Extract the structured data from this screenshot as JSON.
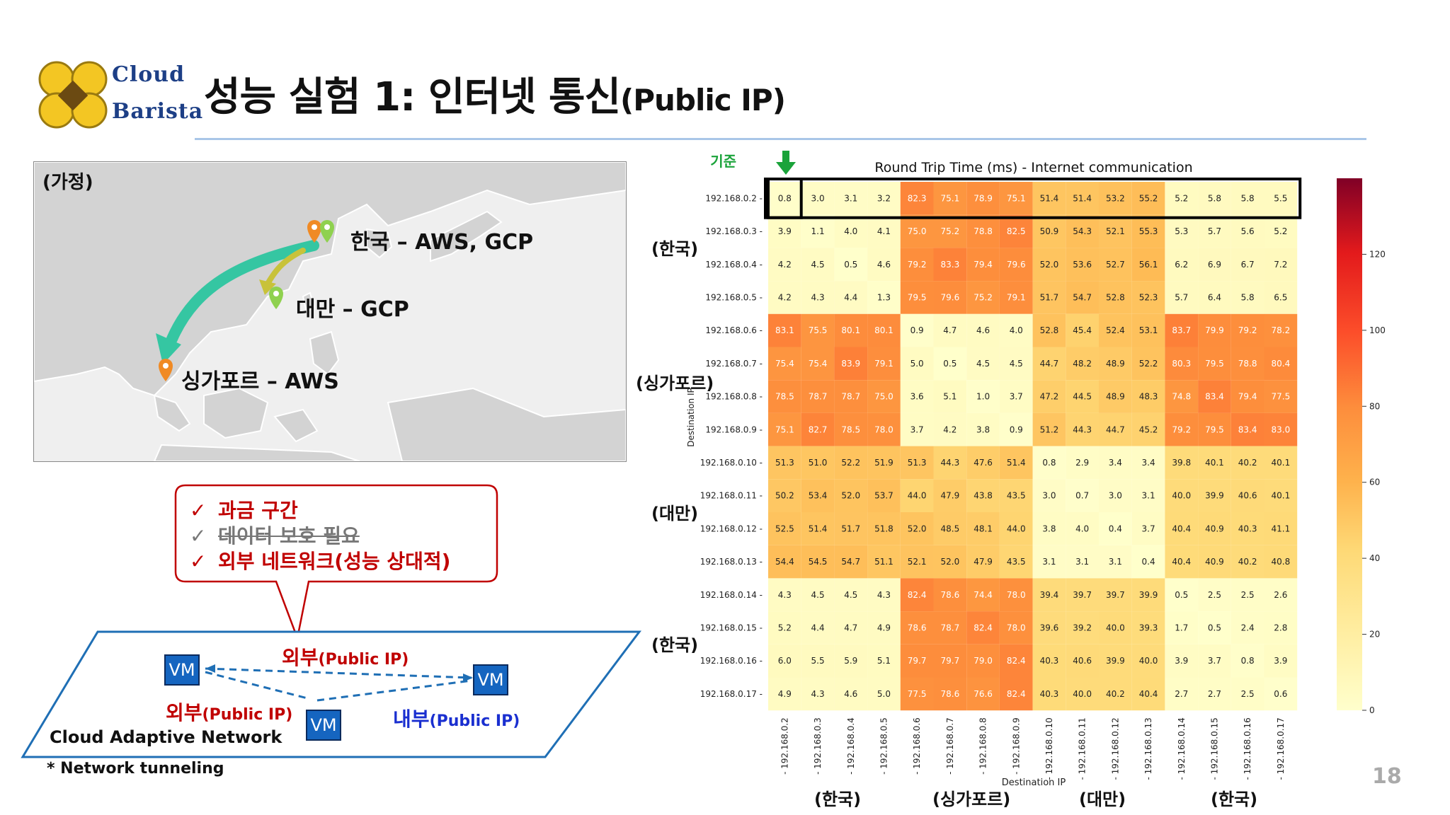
{
  "header": {
    "logo_line1": "Cloud",
    "logo_line2": "Barista",
    "title_main": "성능 실험 1: 인터넷 통신",
    "title_sub": "(Public IP)"
  },
  "map": {
    "assumption_label": "(가정)",
    "korea_label": "한국 – AWS, GCP",
    "taiwan_label": "대만 – GCP",
    "singapore_label": "싱가포르 – AWS"
  },
  "callout": {
    "check_mark": "✓",
    "item1": "과금 구간",
    "item2": "데이터 보호 필요",
    "item3": "외부 네트워크(성능 상대적)"
  },
  "network": {
    "vm_label": "VM",
    "external_label_1": "외부",
    "external_label_1_sub": "(Public IP)",
    "external_label_2": "외부",
    "external_label_2_sub": "(Public IP)",
    "internal_label": "내부",
    "internal_label_sub": "(Public IP)",
    "cloud_network": "Cloud Adaptive Network",
    "tunneling_note": "* Network tunneling"
  },
  "annotations": {
    "baseline": "기준",
    "row_groups": [
      "(한국)",
      "(싱가포르)",
      "(대만)",
      "(한국)"
    ],
    "col_groups": [
      "(한국)",
      "(싱가포르)",
      "(대만)",
      "(한국)"
    ]
  },
  "page_number": "18",
  "colors": {
    "accent_red": "#c00000",
    "title_rule": "#a9c6e8",
    "vm_blue": "#1565c0",
    "baseline_green": "#1aa33a"
  },
  "chart_data": {
    "type": "heatmap",
    "title": "Round Trip Time (ms) - Internet communication",
    "xlabel": "Destination IP",
    "ylabel": "Destination IP",
    "colormap": "YlOrRd",
    "vmin": 0,
    "vmax": 140,
    "colorbar_ticks": [
      0,
      20,
      40,
      60,
      80,
      100,
      120
    ],
    "labels": [
      "192.168.0.2",
      "192.168.0.3",
      "192.168.0.4",
      "192.168.0.5",
      "192.168.0.6",
      "192.168.0.7",
      "192.168.0.8",
      "192.168.0.9",
      "192.168.0.10",
      "192.168.0.11",
      "192.168.0.12",
      "192.168.0.13",
      "192.168.0.14",
      "192.168.0.15",
      "192.168.0.16",
      "192.168.0.17"
    ],
    "highlighted_row": "192.168.0.2",
    "values": [
      [
        0.8,
        3.0,
        3.1,
        3.2,
        82.3,
        75.1,
        78.9,
        75.1,
        51.4,
        51.4,
        53.2,
        55.2,
        5.2,
        5.8,
        5.8,
        5.5
      ],
      [
        3.9,
        1.1,
        4.0,
        4.1,
        75.0,
        75.2,
        78.8,
        82.5,
        50.9,
        54.3,
        52.1,
        55.3,
        5.3,
        5.7,
        5.6,
        5.2
      ],
      [
        4.2,
        4.5,
        0.5,
        4.6,
        79.2,
        83.3,
        79.4,
        79.6,
        52.0,
        53.6,
        52.7,
        56.1,
        6.2,
        6.9,
        6.7,
        7.2
      ],
      [
        4.2,
        4.3,
        4.4,
        1.3,
        79.5,
        79.6,
        75.2,
        79.1,
        51.7,
        54.7,
        52.8,
        52.3,
        5.7,
        6.4,
        5.8,
        6.5
      ],
      [
        83.1,
        75.5,
        80.1,
        80.1,
        0.9,
        4.7,
        4.6,
        4.0,
        52.8,
        45.4,
        52.4,
        53.1,
        83.7,
        79.9,
        79.2,
        78.2
      ],
      [
        75.4,
        75.4,
        83.9,
        79.1,
        5.0,
        0.5,
        4.5,
        4.5,
        44.7,
        48.2,
        48.9,
        52.2,
        80.3,
        79.5,
        78.8,
        80.4
      ],
      [
        78.5,
        78.7,
        78.7,
        75.0,
        3.6,
        5.1,
        1.0,
        3.7,
        47.2,
        44.5,
        48.9,
        48.3,
        74.8,
        83.4,
        79.4,
        77.5
      ],
      [
        75.1,
        82.7,
        78.5,
        78.0,
        3.7,
        4.2,
        3.8,
        0.9,
        51.2,
        44.3,
        44.7,
        45.2,
        79.2,
        79.5,
        83.4,
        83.0
      ],
      [
        51.3,
        51.0,
        52.2,
        51.9,
        51.3,
        44.3,
        47.6,
        51.4,
        0.8,
        2.9,
        3.4,
        3.4,
        39.8,
        40.1,
        40.2,
        40.1
      ],
      [
        50.2,
        53.4,
        52.0,
        53.7,
        44.0,
        47.9,
        43.8,
        43.5,
        3.0,
        0.7,
        3.0,
        3.1,
        40.0,
        39.9,
        40.6,
        40.1
      ],
      [
        52.5,
        51.4,
        51.7,
        51.8,
        52.0,
        48.5,
        48.1,
        44.0,
        3.8,
        4.0,
        0.4,
        3.7,
        40.4,
        40.9,
        40.3,
        41.1
      ],
      [
        54.4,
        54.5,
        54.7,
        51.1,
        52.1,
        52.0,
        47.9,
        43.5,
        3.1,
        3.1,
        3.1,
        0.4,
        40.4,
        40.9,
        40.2,
        40.8
      ],
      [
        4.3,
        4.5,
        4.5,
        4.3,
        82.4,
        78.6,
        74.4,
        78.0,
        39.4,
        39.7,
        39.7,
        39.9,
        0.5,
        2.5,
        2.5,
        2.6
      ],
      [
        5.2,
        4.4,
        4.7,
        4.9,
        78.6,
        78.7,
        82.4,
        78.0,
        39.6,
        39.2,
        40.0,
        39.3,
        1.7,
        0.5,
        2.4,
        2.8
      ],
      [
        6.0,
        5.5,
        5.9,
        5.1,
        79.7,
        79.7,
        79.0,
        82.4,
        40.3,
        40.6,
        39.9,
        40.0,
        3.9,
        3.7,
        0.8,
        3.9
      ],
      [
        4.9,
        4.3,
        4.6,
        5.0,
        77.5,
        78.6,
        76.6,
        82.4,
        40.3,
        40.0,
        40.2,
        40.4,
        2.7,
        2.7,
        2.5,
        0.6
      ]
    ]
  }
}
